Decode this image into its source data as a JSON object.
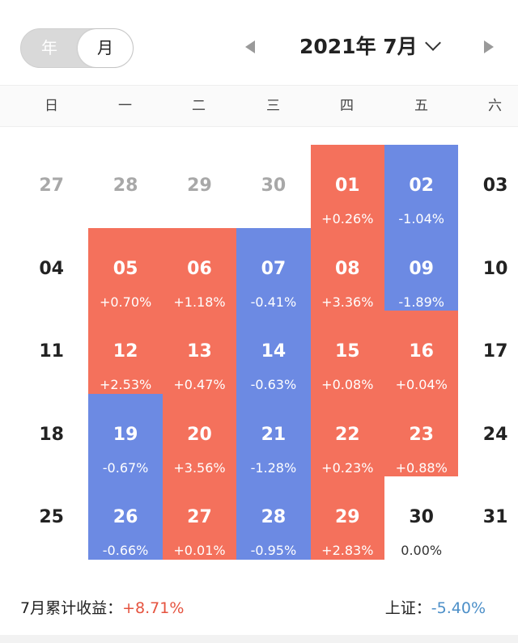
{
  "header": {
    "toggle": {
      "year": "年",
      "month": "月",
      "selected": "月"
    },
    "title": "2021年 7月"
  },
  "weekdays": [
    "日",
    "一",
    "二",
    "三",
    "四",
    "五",
    "六"
  ],
  "colors": {
    "gain": "#f4715c",
    "loss": "#6c8ae3",
    "muted": "#a8a8a8"
  },
  "calendar": [
    [
      {
        "day": "27",
        "pct": "",
        "style": "gray"
      },
      {
        "day": "28",
        "pct": "",
        "style": "gray"
      },
      {
        "day": "29",
        "pct": "",
        "style": "gray"
      },
      {
        "day": "30",
        "pct": "",
        "style": "gray"
      },
      {
        "day": "01",
        "pct": "+0.26%",
        "style": "red"
      },
      {
        "day": "02",
        "pct": "-1.04%",
        "style": "blue"
      },
      {
        "day": "03",
        "pct": "",
        "style": "plain"
      }
    ],
    [
      {
        "day": "04",
        "pct": "",
        "style": "plain"
      },
      {
        "day": "05",
        "pct": "+0.70%",
        "style": "red"
      },
      {
        "day": "06",
        "pct": "+1.18%",
        "style": "red"
      },
      {
        "day": "07",
        "pct": "-0.41%",
        "style": "blue"
      },
      {
        "day": "08",
        "pct": "+3.36%",
        "style": "red"
      },
      {
        "day": "09",
        "pct": "-1.89%",
        "style": "blue"
      },
      {
        "day": "10",
        "pct": "",
        "style": "plain"
      }
    ],
    [
      {
        "day": "11",
        "pct": "",
        "style": "plain"
      },
      {
        "day": "12",
        "pct": "+2.53%",
        "style": "red"
      },
      {
        "day": "13",
        "pct": "+0.47%",
        "style": "red"
      },
      {
        "day": "14",
        "pct": "-0.63%",
        "style": "blue"
      },
      {
        "day": "15",
        "pct": "+0.08%",
        "style": "red"
      },
      {
        "day": "16",
        "pct": "+0.04%",
        "style": "red"
      },
      {
        "day": "17",
        "pct": "",
        "style": "plain"
      }
    ],
    [
      {
        "day": "18",
        "pct": "",
        "style": "plain"
      },
      {
        "day": "19",
        "pct": "-0.67%",
        "style": "blue"
      },
      {
        "day": "20",
        "pct": "+3.56%",
        "style": "red"
      },
      {
        "day": "21",
        "pct": "-1.28%",
        "style": "blue"
      },
      {
        "day": "22",
        "pct": "+0.23%",
        "style": "red"
      },
      {
        "day": "23",
        "pct": "+0.88%",
        "style": "red"
      },
      {
        "day": "24",
        "pct": "",
        "style": "plain"
      }
    ],
    [
      {
        "day": "25",
        "pct": "",
        "style": "plain"
      },
      {
        "day": "26",
        "pct": "-0.66%",
        "style": "blue"
      },
      {
        "day": "27",
        "pct": "+0.01%",
        "style": "red"
      },
      {
        "day": "28",
        "pct": "-0.95%",
        "style": "blue"
      },
      {
        "day": "29",
        "pct": "+2.83%",
        "style": "red"
      },
      {
        "day": "30",
        "pct": "0.00%",
        "style": "plain"
      },
      {
        "day": "31",
        "pct": "",
        "style": "plain"
      }
    ]
  ],
  "footer": {
    "cumulative_label": "7月累计收益：",
    "cumulative_value": "+8.71%",
    "index_label": "上证：",
    "index_value": "-5.40%"
  }
}
